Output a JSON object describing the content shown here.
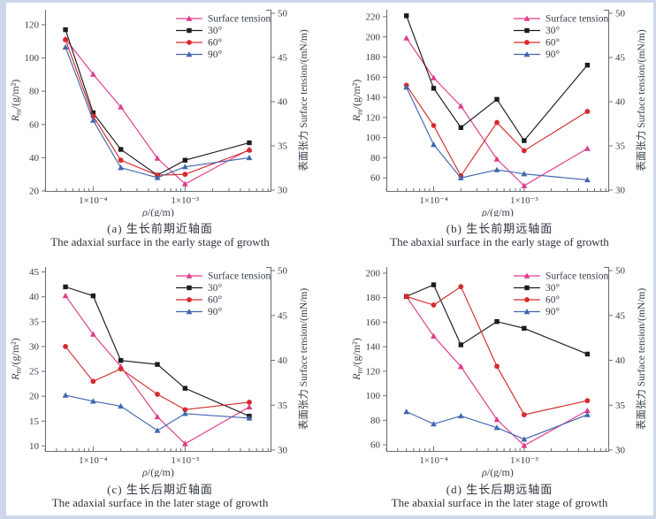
{
  "page": {
    "background": "#ffffff",
    "frame_color": "#cdd7e9",
    "axis_color": "#6b7076",
    "text_color": "#39404a"
  },
  "chart_data": [
    {
      "id": "a",
      "type": "line",
      "caption_zh": "(a) 生长前期近轴面",
      "caption_en": "The adaxial surface in the early stage of growth",
      "xlabel": "ρ/(g/m)",
      "ylabel_left": "R_m/(g/m²)",
      "ylabel_right": "表面张力 Surface tension/(mN/m)",
      "x_axis": {
        "scale": "log",
        "range": [
          3e-05,
          0.0087
        ],
        "major_ticks": [
          {
            "value": 0.0001,
            "label": "1×10⁻⁴"
          },
          {
            "value": 0.001,
            "label": "1×10⁻³"
          }
        ]
      },
      "left_axis": {
        "range": [
          20,
          129
        ],
        "ticks": [
          20,
          40,
          60,
          80,
          100,
          120
        ]
      },
      "right_axis": {
        "range": [
          29.9,
          50.4
        ],
        "ticks": [
          30,
          35,
          40,
          45,
          50
        ]
      },
      "x_values": [
        5e-05,
        0.0001,
        0.0002,
        0.0005,
        0.001,
        0.005
      ],
      "series": [
        {
          "name": "Surface tension",
          "axis": "right",
          "color": "#e03a8c",
          "marker": "triangle",
          "values": [
            47.1,
            43.1,
            39.4,
            33.6,
            30.7,
            34.6
          ]
        },
        {
          "name": "30°",
          "axis": "left",
          "color": "#1c1c1c",
          "marker": "square",
          "values": [
            117,
            67,
            45,
            29.5,
            38.5,
            49
          ]
        },
        {
          "name": "60°",
          "axis": "left",
          "color": "#d62b2b",
          "marker": "circle",
          "values": [
            111,
            65,
            38.5,
            29.5,
            30,
            44.5
          ]
        },
        {
          "name": "90°",
          "axis": "left",
          "color": "#4066ae",
          "marker": "triangle",
          "values": [
            106.5,
            62.5,
            34,
            28,
            34.5,
            40
          ]
        }
      ]
    },
    {
      "id": "b",
      "type": "line",
      "caption_zh": "(b) 生长前期远轴面",
      "caption_en": "The abaxial surface in the early stage of growth",
      "xlabel": "ρ/(g/m)",
      "ylabel_left": "R_m/(g/m²)",
      "ylabel_right": "表面张力 Surface tension/(mN/m)",
      "x_axis": {
        "scale": "log",
        "range": [
          3e-05,
          0.0087
        ],
        "major_ticks": [
          {
            "value": 0.0001,
            "label": "1×10⁻⁴"
          },
          {
            "value": 0.001,
            "label": "1×10⁻³"
          }
        ]
      },
      "left_axis": {
        "range": [
          47,
          227
        ],
        "ticks": [
          60,
          80,
          100,
          120,
          140,
          160,
          180,
          200,
          220
        ]
      },
      "right_axis": {
        "range": [
          29.9,
          50.4
        ],
        "ticks": [
          30,
          35,
          40,
          45,
          50
        ]
      },
      "x_values": [
        5e-05,
        0.0001,
        0.0002,
        0.0005,
        0.001,
        0.005
      ],
      "series": [
        {
          "name": "Surface tension",
          "axis": "right",
          "color": "#e03a8c",
          "marker": "triangle",
          "values": [
            47.2,
            42.7,
            39.5,
            33.5,
            30.5,
            34.7
          ]
        },
        {
          "name": "30°",
          "axis": "left",
          "color": "#1c1c1c",
          "marker": "square",
          "values": [
            221,
            149,
            110,
            138,
            97,
            172
          ]
        },
        {
          "name": "60°",
          "axis": "left",
          "color": "#d62b2b",
          "marker": "circle",
          "values": [
            152,
            112,
            62,
            115,
            87,
            126
          ]
        },
        {
          "name": "90°",
          "axis": "left",
          "color": "#4066ae",
          "marker": "triangle",
          "values": [
            150,
            93,
            60,
            68,
            64,
            58
          ]
        }
      ]
    },
    {
      "id": "c",
      "type": "line",
      "caption_zh": "(c) 生长后期近轴面",
      "caption_en": "The adaxial surface in the later stage of growth",
      "xlabel": "ρ/(g/m)",
      "ylabel_left": "R_m/(g/m²)",
      "ylabel_right": "表面张力 Surface tension/(mN/m)",
      "x_axis": {
        "scale": "log",
        "range": [
          3e-05,
          0.0087
        ],
        "major_ticks": [
          {
            "value": 0.0001,
            "label": "1×10⁻⁴"
          },
          {
            "value": 0.001,
            "label": "1×10⁻³"
          }
        ]
      },
      "left_axis": {
        "range": [
          9,
          46
        ],
        "ticks": [
          10,
          15,
          20,
          25,
          30,
          35,
          40,
          45
        ]
      },
      "right_axis": {
        "range": [
          29.9,
          50.4
        ],
        "ticks": [
          30,
          35,
          40,
          45,
          50
        ]
      },
      "x_values": [
        5e-05,
        0.0001,
        0.0002,
        0.0005,
        0.001,
        0.005
      ],
      "series": [
        {
          "name": "Surface tension",
          "axis": "right",
          "color": "#e03a8c",
          "marker": "triangle",
          "values": [
            47.2,
            42.9,
            39.3,
            33.7,
            30.7,
            34.8
          ]
        },
        {
          "name": "30°",
          "axis": "left",
          "color": "#1c1c1c",
          "marker": "square",
          "values": [
            42,
            40.2,
            27.2,
            26.4,
            21.6,
            16
          ]
        },
        {
          "name": "60°",
          "axis": "left",
          "color": "#d62b2b",
          "marker": "circle",
          "values": [
            30,
            23,
            25.5,
            20.4,
            17.3,
            18.8
          ]
        },
        {
          "name": "90°",
          "axis": "left",
          "color": "#4066ae",
          "marker": "triangle",
          "values": [
            20.2,
            19,
            18,
            13.1,
            16.5,
            15.6
          ]
        }
      ]
    },
    {
      "id": "d",
      "type": "line",
      "caption_zh": "(d) 生长后期远轴面",
      "caption_en": "The abaxial surface in the later stage of growth",
      "xlabel": "ρ/(g/m)",
      "ylabel_left": "R_m/(g/m²)",
      "ylabel_right": "表面张力 Surface tension/(mN/m)",
      "x_axis": {
        "scale": "log",
        "range": [
          3e-05,
          0.0087
        ],
        "major_ticks": [
          {
            "value": 0.0001,
            "label": "1×10⁻⁴"
          },
          {
            "value": 0.001,
            "label": "1×10⁻³"
          }
        ]
      },
      "left_axis": {
        "range": [
          55,
          205
        ],
        "ticks": [
          60,
          80,
          100,
          120,
          140,
          160,
          180,
          200
        ]
      },
      "right_axis": {
        "range": [
          29.9,
          50.4
        ],
        "ticks": [
          30,
          35,
          40,
          45,
          50
        ]
      },
      "x_values": [
        5e-05,
        0.0001,
        0.0002,
        0.0005,
        0.001,
        0.005
      ],
      "series": [
        {
          "name": "Surface tension",
          "axis": "right",
          "color": "#e03a8c",
          "marker": "triangle",
          "values": [
            47.1,
            42.7,
            39.3,
            33.4,
            30.5,
            34.4
          ]
        },
        {
          "name": "30°",
          "axis": "left",
          "color": "#1c1c1c",
          "marker": "square",
          "values": [
            181,
            190.5,
            141.5,
            160.5,
            155,
            134
          ]
        },
        {
          "name": "60°",
          "axis": "left",
          "color": "#d62b2b",
          "marker": "circle",
          "values": [
            181,
            174,
            189,
            124,
            84.5,
            96
          ]
        },
        {
          "name": "90°",
          "axis": "left",
          "color": "#4066ae",
          "marker": "triangle",
          "values": [
            87,
            77,
            83.5,
            74,
            64.5,
            84.5
          ]
        }
      ]
    }
  ]
}
